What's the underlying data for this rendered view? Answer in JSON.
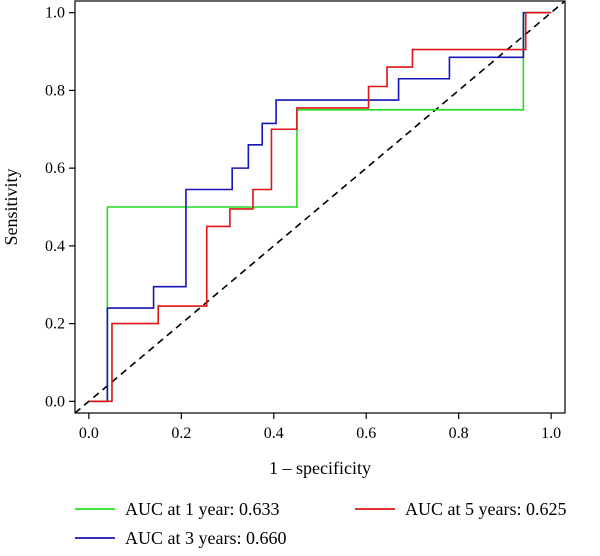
{
  "chart_data": {
    "type": "line",
    "title": "",
    "xlabel": "1 – specificity",
    "ylabel": "Sensitivity",
    "xlim": [
      -0.03,
      1.03
    ],
    "ylim": [
      -0.03,
      1.03
    ],
    "x_ticks": [
      "0.0",
      "0.2",
      "0.4",
      "0.6",
      "0.8",
      "1.0"
    ],
    "y_ticks": [
      "0.0",
      "0.2",
      "0.4",
      "0.6",
      "0.8",
      "1.0"
    ],
    "grid": false,
    "legend": "bottom",
    "reference_line": {
      "style": "dashed",
      "color": "#000000",
      "points": [
        [
          -0.03,
          -0.03
        ],
        [
          1.03,
          1.03
        ]
      ]
    },
    "series": [
      {
        "name": "AUC at 1 year: 0.633",
        "color": "#22dd22",
        "points": [
          [
            0.0,
            0.0
          ],
          [
            0.04,
            0.0
          ],
          [
            0.04,
            0.5
          ],
          [
            0.45,
            0.5
          ],
          [
            0.45,
            0.75
          ],
          [
            0.94,
            0.75
          ],
          [
            0.94,
            1.0
          ],
          [
            1.0,
            1.0
          ]
        ]
      },
      {
        "name": "AUC at 3 years: 0.660",
        "color": "#1515b8",
        "points": [
          [
            0.0,
            0.0
          ],
          [
            0.04,
            0.0
          ],
          [
            0.04,
            0.24
          ],
          [
            0.08,
            0.24
          ],
          [
            0.14,
            0.24
          ],
          [
            0.14,
            0.295
          ],
          [
            0.21,
            0.295
          ],
          [
            0.21,
            0.545
          ],
          [
            0.31,
            0.545
          ],
          [
            0.31,
            0.6
          ],
          [
            0.345,
            0.6
          ],
          [
            0.345,
            0.66
          ],
          [
            0.375,
            0.66
          ],
          [
            0.375,
            0.715
          ],
          [
            0.405,
            0.715
          ],
          [
            0.405,
            0.775
          ],
          [
            0.67,
            0.775
          ],
          [
            0.67,
            0.83
          ],
          [
            0.78,
            0.83
          ],
          [
            0.78,
            0.885
          ],
          [
            0.94,
            0.885
          ],
          [
            0.94,
            1.0
          ],
          [
            1.0,
            1.0
          ]
        ]
      },
      {
        "name": "AUC at 5 years: 0.625",
        "color": "#dd1515",
        "points": [
          [
            0.0,
            0.0
          ],
          [
            0.05,
            0.0
          ],
          [
            0.05,
            0.2
          ],
          [
            0.15,
            0.2
          ],
          [
            0.15,
            0.245
          ],
          [
            0.25,
            0.245
          ],
          [
            0.255,
            0.245
          ],
          [
            0.255,
            0.45
          ],
          [
            0.305,
            0.45
          ],
          [
            0.305,
            0.495
          ],
          [
            0.355,
            0.495
          ],
          [
            0.355,
            0.545
          ],
          [
            0.395,
            0.545
          ],
          [
            0.395,
            0.7
          ],
          [
            0.45,
            0.7
          ],
          [
            0.45,
            0.755
          ],
          [
            0.605,
            0.755
          ],
          [
            0.605,
            0.81
          ],
          [
            0.645,
            0.81
          ],
          [
            0.645,
            0.86
          ],
          [
            0.7,
            0.86
          ],
          [
            0.7,
            0.905
          ],
          [
            0.945,
            0.905
          ],
          [
            0.945,
            1.0
          ],
          [
            1.0,
            1.0
          ]
        ]
      }
    ]
  }
}
